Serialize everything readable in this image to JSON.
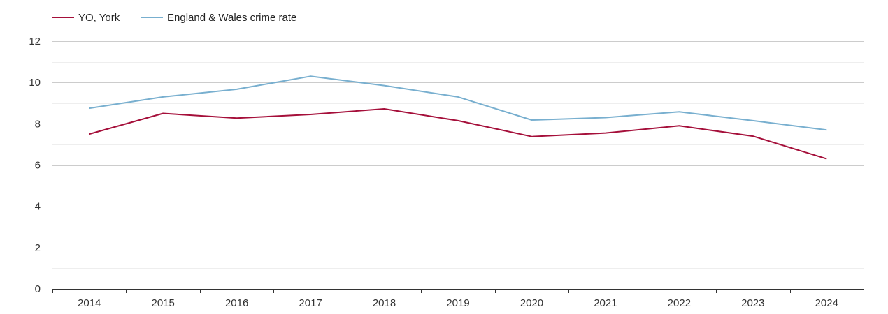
{
  "chart_data": {
    "type": "line",
    "title": "",
    "xlabel": "",
    "ylabel": "",
    "categories": [
      "2014",
      "2015",
      "2016",
      "2017",
      "2018",
      "2019",
      "2020",
      "2021",
      "2022",
      "2023",
      "2024"
    ],
    "ylim": [
      0,
      12
    ],
    "y_ticks": [
      0,
      2,
      4,
      6,
      8,
      10,
      12
    ],
    "grid": true,
    "legend_position": "top-left",
    "series": [
      {
        "name": "YO, York",
        "color": "#a50f3a",
        "values": [
          7.5,
          8.5,
          8.27,
          8.45,
          8.72,
          8.15,
          7.38,
          7.55,
          7.9,
          7.4,
          6.3
        ]
      },
      {
        "name": "England & Wales crime rate",
        "color": "#78afcf",
        "values": [
          8.75,
          9.3,
          9.67,
          10.3,
          9.85,
          9.3,
          8.18,
          8.3,
          8.58,
          8.15,
          7.7
        ]
      }
    ]
  }
}
